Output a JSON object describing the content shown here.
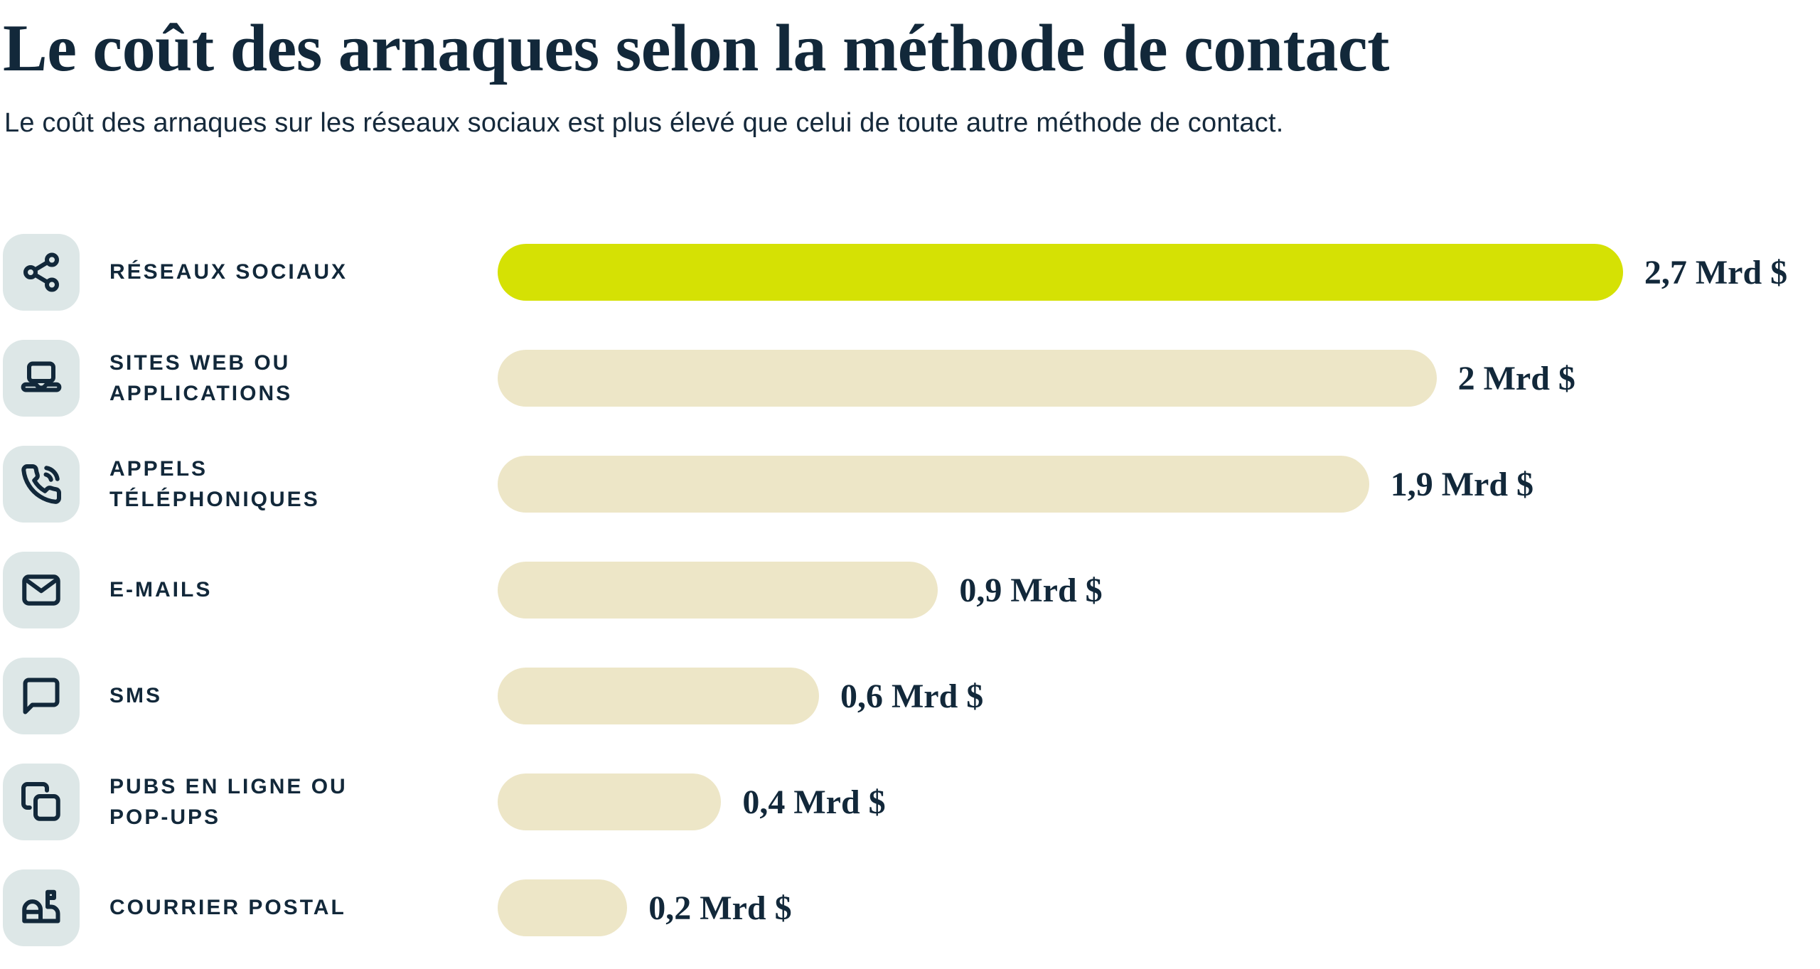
{
  "header": {
    "title": "Le coût des arnaques selon la méthode de contact",
    "subtitle": "Le coût des arnaques sur les réseaux sociaux est plus élevé que celui de toute autre méthode de contact."
  },
  "colors": {
    "text_navy": "#12283a",
    "highlight_green": "#d5e104",
    "bar_beige": "#ede6c7",
    "icon_box_bg": "#dde7e7",
    "background": "#ffffff"
  },
  "chart_data": {
    "type": "bar",
    "orientation": "horizontal",
    "title": "Le coût des arnaques selon la méthode de contact",
    "xlabel": "",
    "ylabel": "",
    "unit": "Mrd $",
    "grid": false,
    "legend": false,
    "categories": [
      "RÉSEAUX SOCIAUX",
      "SITES WEB OU APPLICATIONS",
      "APPELS TÉLÉPHONIQUES",
      "E-MAILS",
      "SMS",
      "PUBS EN LIGNE OU POP-UPS",
      "COURRIER POSTAL"
    ],
    "label_display": [
      "RÉSEAUX SOCIAUX",
      "SITES WEB OU\nAPPLICATIONS",
      "APPELS\nTÉLÉPHONIQUES",
      "E-MAILS",
      "SMS",
      "PUBS EN LIGNE OU\nPOP-UPS",
      "COURRIER POSTAL"
    ],
    "values": [
      2.7,
      2.0,
      1.9,
      0.9,
      0.6,
      0.4,
      0.2
    ],
    "value_labels": [
      "2,7 Mrd $",
      "2 Mrd $",
      "1,9 Mrd $",
      "0,9 Mrd $",
      "0,6 Mrd $",
      "0,4 Mrd $",
      "0,2 Mrd $"
    ],
    "icons": [
      "share-icon",
      "laptop-icon",
      "phone-call-icon",
      "mail-icon",
      "sms-bubble-icon",
      "popup-windows-icon",
      "mailbox-icon"
    ],
    "highlighted_index": 0,
    "bar_widths_pct": [
      85.1,
      71.0,
      65.9,
      33.3,
      24.3,
      16.9,
      9.8
    ]
  }
}
